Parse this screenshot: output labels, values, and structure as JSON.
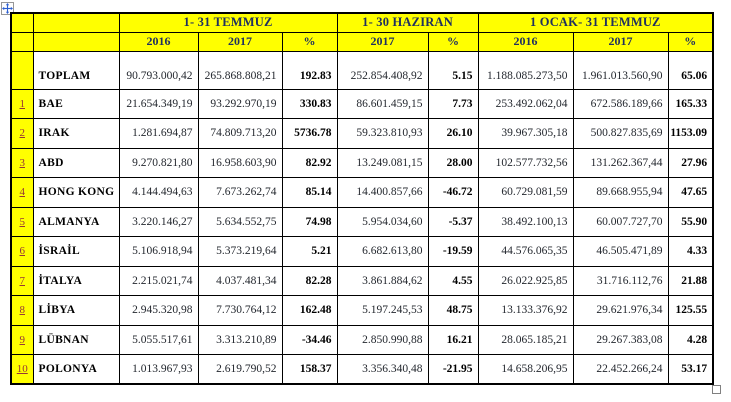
{
  "icons": {
    "move_handle": "four-direction-move-cross",
    "resize_handle": "small-square"
  },
  "colors": {
    "header_bg": "#FFFF00",
    "header_text": "#1F3060",
    "rank_text": "#953735",
    "body_text": "#23272E",
    "border": "#000000"
  },
  "table": {
    "col_groups": [
      {
        "label": "1- 31 TEMMUZ",
        "span": 3
      },
      {
        "label": "1- 30 HAZIRAN",
        "span": 2
      },
      {
        "label": "1 OCAK- 31 TEMMUZ",
        "span": 3
      }
    ],
    "year_headers": [
      "2016",
      "2017",
      "%",
      "2017",
      "%",
      "2016",
      "2017",
      "%"
    ],
    "total_row": {
      "label": "TOPLAM",
      "values": [
        "90.793.000,42",
        "265.868.808,21",
        "192.83",
        "252.854.408,92",
        "5.15",
        "1.188.085.273,50",
        "1.961.013.560,90",
        "65.06"
      ]
    },
    "rows": [
      {
        "rank": "1",
        "country": "BAE",
        "values": [
          "21.654.349,19",
          "93.292.970,19",
          "330.83",
          "86.601.459,15",
          "7.73",
          "253.492.062,04",
          "672.586.189,66",
          "165.33"
        ]
      },
      {
        "rank": "2",
        "country": "IRAK",
        "values": [
          "1.281.694,87",
          "74.809.713,20",
          "5736.78",
          "59.323.810,93",
          "26.10",
          "39.967.305,18",
          "500.827.835,69",
          "1153.09"
        ]
      },
      {
        "rank": "3",
        "country": "ABD",
        "values": [
          "9.270.821,80",
          "16.958.603,90",
          "82.92",
          "13.249.081,15",
          "28.00",
          "102.577.732,56",
          "131.262.367,44",
          "27.96"
        ]
      },
      {
        "rank": "4",
        "country": "HONG KONG",
        "values": [
          "4.144.494,63",
          "7.673.262,74",
          "85.14",
          "14.400.857,66",
          "-46.72",
          "60.729.081,59",
          "89.668.955,94",
          "47.65"
        ]
      },
      {
        "rank": "5",
        "country": "ALMANYA",
        "values": [
          "3.220.146,27",
          "5.634.552,75",
          "74.98",
          "5.954.034,60",
          "-5.37",
          "38.492.100,13",
          "60.007.727,70",
          "55.90"
        ]
      },
      {
        "rank": "6",
        "country": "İSRAİL",
        "values": [
          "5.106.918,94",
          "5.373.219,64",
          "5.21",
          "6.682.613,80",
          "-19.59",
          "44.576.065,35",
          "46.505.471,89",
          "4.33"
        ]
      },
      {
        "rank": "7",
        "country": "İTALYA",
        "values": [
          "2.215.021,74",
          "4.037.481,34",
          "82.28",
          "3.861.884,62",
          "4.55",
          "26.022.925,85",
          "31.716.112,76",
          "21.88"
        ]
      },
      {
        "rank": "8",
        "country": "LİBYA",
        "values": [
          "2.945.320,98",
          "7.730.764,12",
          "162.48",
          "5.197.245,53",
          "48.75",
          "13.133.376,92",
          "29.621.976,34",
          "125.55"
        ]
      },
      {
        "rank": "9",
        "country": "LÜBNAN",
        "values": [
          "5.055.517,61",
          "3.313.210,89",
          "-34.46",
          "2.850.990,88",
          "16.21",
          "28.065.185,21",
          "29.267.383,08",
          "4.28"
        ]
      },
      {
        "rank": "10",
        "country": "POLONYA",
        "values": [
          "1.013.967,93",
          "2.619.790,52",
          "158.37",
          "3.356.340,48",
          "-21.95",
          "14.658.206,95",
          "22.452.266,24",
          "53.17"
        ]
      }
    ]
  }
}
